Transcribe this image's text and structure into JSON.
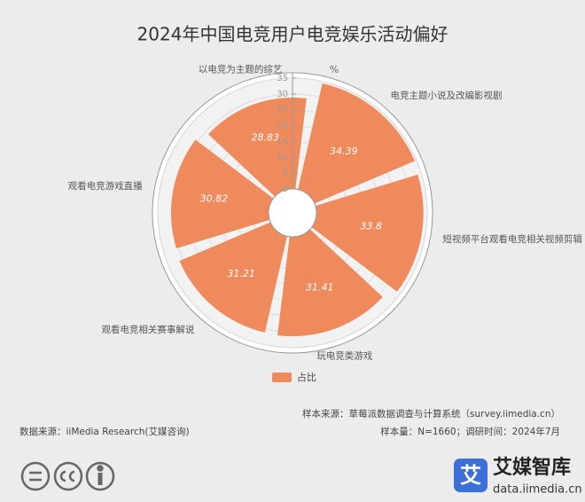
{
  "chart_data": {
    "type": "polar-bar",
    "title": "2024年中国电竞用户电竞娱乐活动偏好",
    "categories": [
      "电竞主题小说及改编影视剧",
      "短视频平台观看电竞相关视频剪辑",
      "玩电竞类游戏",
      "观看电竞相关赛事解说",
      "观看电竞游戏直播",
      "以电竞为主题的综艺"
    ],
    "series": [
      {
        "name": "占比",
        "color": "#ee8a5c",
        "values": [
          34.39,
          33.8,
          31.41,
          31.21,
          30.82,
          28.83
        ]
      }
    ],
    "radius_label": "%",
    "rlim": [
      0,
      35
    ],
    "rticks": [
      0,
      5,
      10,
      15,
      20,
      25,
      30,
      35
    ],
    "grid": true
  },
  "footer": {
    "sample_source": "样本来源：草莓派数据调查与计算系统（survey.iimedia.cn）",
    "sample_info": "样本量：N=1660；调研时间：2024年7月",
    "data_source": "数据来源：iiMedia Research(艾媒咨询)"
  },
  "logo": {
    "icon": "艾",
    "name": "艾媒智库",
    "url": "data.iimedia.cn"
  }
}
